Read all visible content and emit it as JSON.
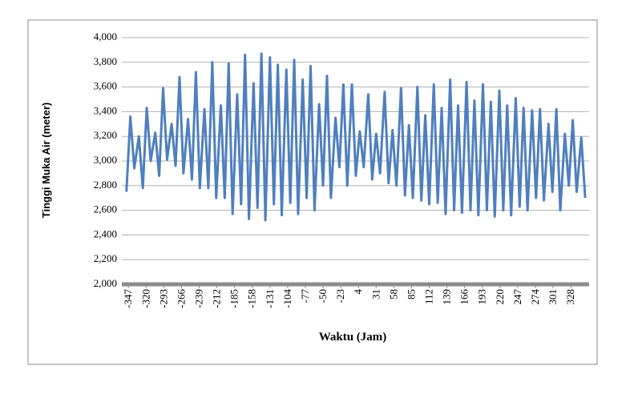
{
  "chart_data": {
    "type": "line",
    "x_label": "Waktu (Jam)",
    "y_label": "Tinggi Muka Air (meter)",
    "xlim": [
      -357,
      356
    ],
    "xticks": [
      -347,
      -320,
      -293,
      -266,
      -239,
      -212,
      -185,
      -158,
      -131,
      -104,
      -77,
      -50,
      -23,
      4,
      31,
      58,
      85,
      112,
      139,
      166,
      193,
      220,
      247,
      274,
      301,
      328
    ],
    "ylim": [
      2000,
      4000
    ],
    "yticks": [
      {
        "value": 2000,
        "label": "2,000"
      },
      {
        "value": 2200,
        "label": "2,200"
      },
      {
        "value": 2400,
        "label": "2,400"
      },
      {
        "value": 2600,
        "label": "2,600"
      },
      {
        "value": 2800,
        "label": "2,800"
      },
      {
        "value": 3000,
        "label": "3,000"
      },
      {
        "value": 3200,
        "label": "3,200"
      },
      {
        "value": 3400,
        "label": "3,400"
      },
      {
        "value": 3600,
        "label": "3,600"
      },
      {
        "value": 3800,
        "label": "3,800"
      },
      {
        "value": 4000,
        "label": "4,000"
      }
    ],
    "grid": true,
    "x": [
      -350,
      -344,
      -338,
      -331,
      -325,
      -319,
      -313,
      -306,
      -300,
      -294,
      -288,
      -281,
      -275,
      -269,
      -263,
      -256,
      -250,
      -244,
      -238,
      -231,
      -225,
      -219,
      -213,
      -206,
      -200,
      -194,
      -188,
      -181,
      -175,
      -169,
      -163,
      -156,
      -150,
      -144,
      -138,
      -131,
      -125,
      -119,
      -113,
      -106,
      -100,
      -94,
      -88,
      -81,
      -75,
      -69,
      -63,
      -56,
      -50,
      -44,
      -38,
      -31,
      -25,
      -19,
      -13,
      -6,
      0,
      6,
      12,
      19,
      25,
      31,
      37,
      44,
      50,
      56,
      62,
      69,
      75,
      81,
      87,
      94,
      100,
      106,
      112,
      119,
      125,
      131,
      137,
      144,
      150,
      156,
      162,
      169,
      175,
      181,
      187,
      194,
      200,
      206,
      212,
      219,
      225,
      231,
      237,
      244,
      250,
      256,
      262,
      269,
      275,
      281,
      287,
      294,
      300,
      306,
      312,
      319,
      325,
      331,
      337,
      344,
      350
    ],
    "series": [
      {
        "color": "#4f7fbf",
        "values": [
          2750,
          3360,
          2940,
          3200,
          2780,
          3430,
          3000,
          3230,
          2880,
          3590,
          3010,
          3300,
          2960,
          3680,
          2900,
          3340,
          2850,
          3720,
          2780,
          3420,
          2780,
          3800,
          2700,
          3450,
          2700,
          3790,
          2570,
          3540,
          2650,
          3860,
          2530,
          3630,
          2620,
          3870,
          2520,
          3840,
          2650,
          3780,
          2560,
          3740,
          2660,
          3820,
          2570,
          3660,
          2700,
          3770,
          2600,
          3460,
          2800,
          3690,
          2700,
          3350,
          2950,
          3620,
          2800,
          3620,
          2880,
          3240,
          2950,
          3540,
          2850,
          3220,
          2900,
          3560,
          2820,
          3250,
          2800,
          3590,
          2720,
          3290,
          2700,
          3600,
          2680,
          3370,
          2650,
          3620,
          2660,
          3430,
          2570,
          3660,
          2600,
          3450,
          2580,
          3640,
          2600,
          3490,
          2560,
          3620,
          2600,
          3480,
          2550,
          3570,
          2600,
          3450,
          2560,
          3510,
          2630,
          3430,
          2600,
          3410,
          2700,
          3420,
          2680,
          3300,
          2750,
          3420,
          2600,
          3220,
          2800,
          3330,
          2750,
          3190,
          2700
        ]
      }
    ]
  }
}
